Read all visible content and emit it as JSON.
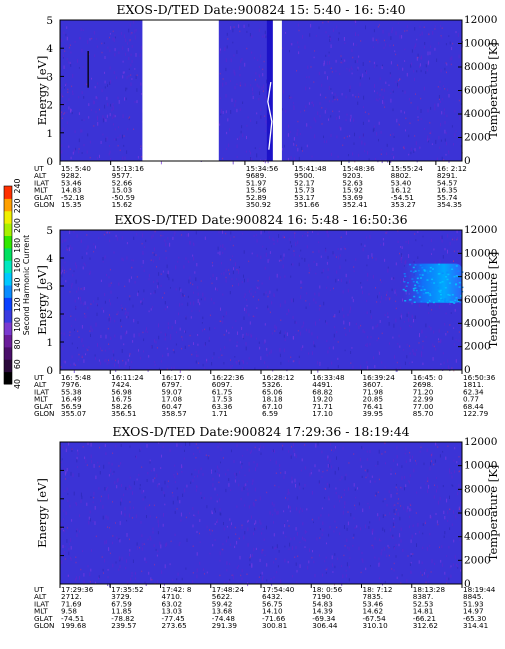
{
  "colorbar": {
    "label": "Second Harmonic Current",
    "ticks": [
      "40",
      "60",
      "80",
      "100",
      "120",
      "140",
      "160",
      "180",
      "200",
      "220",
      "240"
    ],
    "colors": [
      "#000000",
      "#2a0a3a",
      "#4a0f6a",
      "#6a1c9a",
      "#7a3ad0",
      "#3a3ae0",
      "#0a40ff",
      "#0a8cff",
      "#00c8ff",
      "#00e8c0",
      "#00e060",
      "#30e800",
      "#a8f000",
      "#f0f000",
      "#ffa000",
      "#ff3000"
    ]
  },
  "chart_data": [
    {
      "type": "heatmap",
      "title": "EXOS-D/TED   Date:900824   15: 5:40 - 16: 5:40",
      "ylabel": "Energy [eV]",
      "y2label": "Temperature [K]",
      "ylim": [
        0,
        5
      ],
      "yticks": [
        "0",
        "1",
        "2",
        "3",
        "4",
        "5"
      ],
      "y2lim": [
        0,
        12000
      ],
      "y2ticks": [
        "0",
        "2000",
        "4000",
        "6000",
        "8000",
        "10000",
        "12000"
      ],
      "gaps": [
        [
          0.205,
          0.395
        ],
        [
          0.523,
          0.552
        ]
      ],
      "spikes": [
        {
          "pos": 0.522,
          "value": 2.8
        }
      ],
      "orbit_labels": [
        "UT",
        "ALT",
        "ILAT",
        "MLT",
        "GLAT",
        "GLON"
      ],
      "orbit_columns": [
        {
          "pos": 0.0,
          "values": [
            "15: 5:40",
            "9282.",
            "53.46",
            "14.83",
            "-52.18",
            "15.35"
          ]
        },
        {
          "pos": 0.126,
          "values": [
            "15:13:16",
            "9577.",
            "52.66",
            "15.03",
            "-50.59",
            "15.62"
          ]
        },
        {
          "pos": 0.46,
          "values": [
            "15:34:56",
            "9689.",
            "51.97",
            "15.56",
            "52.89",
            "350.92"
          ]
        },
        {
          "pos": 0.58,
          "values": [
            "15:41:48",
            "9500.",
            "52.17",
            "15.73",
            "53.17",
            "351.66"
          ]
        },
        {
          "pos": 0.7,
          "values": [
            "15:48:36",
            "9203.",
            "52.63",
            "15.92",
            "53.69",
            "352.41"
          ]
        },
        {
          "pos": 0.82,
          "values": [
            "15:55:24",
            "8802.",
            "53.40",
            "16.12",
            "-54.51",
            "353.27"
          ]
        },
        {
          "pos": 0.935,
          "values": [
            "16: 2:12",
            "8291.",
            "54.57",
            "16.35",
            "55.74",
            "354.35"
          ]
        }
      ]
    },
    {
      "type": "heatmap",
      "title": "EXOS-D/TED   Date:900824   16: 5:48 - 16:50:36",
      "ylabel": "Energy [eV]",
      "y2label": "Temperature [K]",
      "ylim": [
        0,
        5
      ],
      "yticks": [
        "0",
        "1",
        "2",
        "3",
        "4",
        "5"
      ],
      "y2lim": [
        0,
        12000
      ],
      "y2ticks": [
        "0",
        "2000",
        "4000",
        "6000",
        "8000",
        "10000",
        "12000"
      ],
      "gaps": [],
      "bright_region": {
        "x_from": 0.85,
        "x_to": 1.0,
        "y_from": 2.4,
        "y_to": 3.8
      },
      "orbit_labels": [
        "UT",
        "ALT",
        "ILAT",
        "MLT",
        "GLAT",
        "GLON"
      ],
      "orbit_columns": [
        {
          "pos": 0.0,
          "values": [
            "16: 5:48",
            "7976.",
            "55.38",
            "16.49",
            "56.59",
            "355.07"
          ]
        },
        {
          "pos": 0.125,
          "values": [
            "16:11:24",
            "7424.",
            "56.98",
            "16.75",
            "58.26",
            "356.51"
          ]
        },
        {
          "pos": 0.25,
          "values": [
            "16:17: 0",
            "6797.",
            "59.07",
            "17.08",
            "60.47",
            "358.57"
          ]
        },
        {
          "pos": 0.375,
          "values": [
            "16:22:36",
            "6097.",
            "61.75",
            "17.53",
            "63.36",
            "1.71"
          ]
        },
        {
          "pos": 0.5,
          "values": [
            "16:28:12",
            "5326.",
            "65.06",
            "18.18",
            "67.10",
            "6.59"
          ]
        },
        {
          "pos": 0.625,
          "values": [
            "16:33:48",
            "4491.",
            "68.82",
            "19.20",
            "71.71",
            "17.10"
          ]
        },
        {
          "pos": 0.75,
          "values": [
            "16:39:24",
            "3607.",
            "71.98",
            "20.85",
            "76.41",
            "39.95"
          ]
        },
        {
          "pos": 0.875,
          "values": [
            "16:45: 0",
            "2698.",
            "71.20",
            "22.99",
            "77.00",
            "85.70"
          ]
        },
        {
          "pos": 1.0,
          "values": [
            "16:50:36",
            "1811.",
            "62.34",
            "0.77",
            "68.44",
            "122.79"
          ]
        }
      ]
    },
    {
      "type": "heatmap",
      "title": "EXOS-D/TED   Date:900824   17:29:36 - 18:19:44",
      "ylabel": "Energy [eV]",
      "y2label": "Temperature [K]",
      "ylim": [
        0,
        5
      ],
      "yticks": [],
      "y2lim": [
        0,
        12000
      ],
      "y2ticks": [
        "0",
        "2000",
        "4000",
        "6000",
        "8000",
        "10000",
        "12000"
      ],
      "gaps": [],
      "orbit_labels": [
        "UT",
        "ALT",
        "ILAT",
        "MLT",
        "GLAT",
        "GLON"
      ],
      "orbit_columns": [
        {
          "pos": 0.0,
          "values": [
            "17:29:36",
            "2712.",
            "71.69",
            "9.58",
            "-74.51",
            "199.68"
          ]
        },
        {
          "pos": 0.125,
          "values": [
            "17:35:52",
            "3729.",
            "67.59",
            "11.85",
            "-78.82",
            "239.57"
          ]
        },
        {
          "pos": 0.25,
          "values": [
            "17:42: 8",
            "4710.",
            "63.02",
            "13.03",
            "-77.45",
            "273.65"
          ]
        },
        {
          "pos": 0.375,
          "values": [
            "17:48:24",
            "5622.",
            "59.42",
            "13.68",
            "-74.48",
            "291.39"
          ]
        },
        {
          "pos": 0.5,
          "values": [
            "17:54:40",
            "6432.",
            "56.75",
            "14.10",
            "-71.66",
            "300.81"
          ]
        },
        {
          "pos": 0.625,
          "values": [
            "18: 0:56",
            "7190.",
            "54.83",
            "14.39",
            "-69.34",
            "306.44"
          ]
        },
        {
          "pos": 0.75,
          "values": [
            "18: 7:12",
            "7835.",
            "53.46",
            "14.62",
            "-67.54",
            "310.10"
          ]
        },
        {
          "pos": 0.875,
          "values": [
            "18:13:28",
            "8387.",
            "52.53",
            "14.81",
            "-66.21",
            "312.62"
          ]
        },
        {
          "pos": 1.0,
          "values": [
            "18:19:44",
            "8845.",
            "51.93",
            "14.97",
            "-65.30",
            "314.41"
          ]
        }
      ]
    }
  ]
}
